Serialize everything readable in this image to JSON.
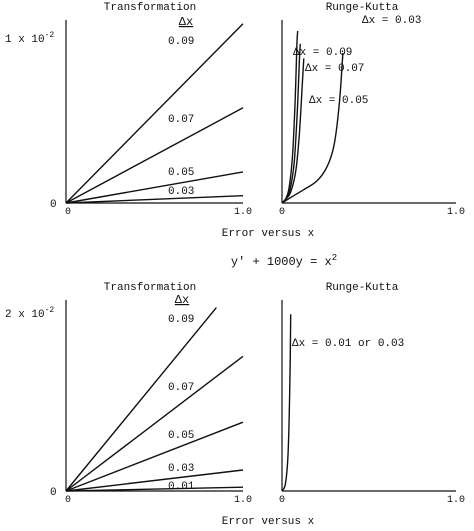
{
  "caption": {
    "xlabel_top": "Error versus x",
    "equation": "y′ + 1000y = x",
    "equation_sup": "2",
    "xlabel_bottom": "Error versus x"
  },
  "chart_data": [
    {
      "type": "line",
      "title": "Transformation",
      "legend_title": "Δx",
      "y_tick_main": "1 x 10",
      "y_tick_exp": "-2",
      "y_tick_zero": "0",
      "x_tick_zero": "0",
      "x_tick_end": "1.0",
      "xlim": [
        0,
        1.0
      ],
      "ylim": [
        0,
        0.01
      ],
      "series": [
        {
          "name": "0.09",
          "x": [
            0,
            1.0
          ],
          "y": [
            0,
            0.0098
          ]
        },
        {
          "name": "0.07",
          "x": [
            0,
            1.0
          ],
          "y": [
            0,
            0.0052
          ]
        },
        {
          "name": "0.05",
          "x": [
            0,
            1.0
          ],
          "y": [
            0,
            0.0017
          ]
        },
        {
          "name": "0.03",
          "x": [
            0,
            1.0
          ],
          "y": [
            0,
            0.0004
          ]
        }
      ]
    },
    {
      "type": "line",
      "title": "Runge-Kutta",
      "x_tick_zero": "0",
      "x_tick_end": "1.0",
      "xlim": [
        0,
        1.0
      ],
      "ylim": [
        0,
        0.01
      ],
      "series": [
        {
          "name": "Δx = 0.09",
          "x": [
            0,
            0.02,
            0.04,
            0.06,
            0.075,
            0.085,
            0.09
          ],
          "y": [
            0,
            0.0002,
            0.0008,
            0.0025,
            0.0055,
            0.0085,
            0.0094
          ]
        },
        {
          "name": "Δx = 0.07",
          "x": [
            0,
            0.02,
            0.045,
            0.07,
            0.088,
            0.1,
            0.105
          ],
          "y": [
            0,
            0.0002,
            0.0007,
            0.0022,
            0.005,
            0.0078,
            0.0087
          ]
        },
        {
          "name": "Δx = 0.05",
          "x": [
            0,
            0.02,
            0.05,
            0.08,
            0.1,
            0.115,
            0.125
          ],
          "y": [
            0,
            0.0002,
            0.0006,
            0.0018,
            0.0038,
            0.0062,
            0.0079
          ]
        },
        {
          "name": "Δx = 0.03",
          "x": [
            0,
            0.05,
            0.12,
            0.2,
            0.26,
            0.3,
            0.33,
            0.35
          ],
          "y": [
            0,
            0.0003,
            0.0007,
            0.0012,
            0.002,
            0.0032,
            0.0055,
            0.0082
          ]
        }
      ]
    },
    {
      "type": "line",
      "title": "Transformation",
      "legend_title": "Δx",
      "y_tick_main": "2 x 10",
      "y_tick_exp": "-2",
      "y_tick_zero": "0",
      "x_tick_zero": "0",
      "x_tick_end": "1.0",
      "xlim": [
        0,
        1.0
      ],
      "ylim": [
        0,
        0.02
      ],
      "series": [
        {
          "name": "0.09",
          "x": [
            0,
            0.85
          ],
          "y": [
            0,
            0.0192
          ]
        },
        {
          "name": "0.07",
          "x": [
            0,
            1.0
          ],
          "y": [
            0,
            0.0141
          ]
        },
        {
          "name": "0.05",
          "x": [
            0,
            1.0
          ],
          "y": [
            0,
            0.0072
          ]
        },
        {
          "name": "0.03",
          "x": [
            0,
            1.0
          ],
          "y": [
            0,
            0.0022
          ]
        },
        {
          "name": "0.01",
          "x": [
            0,
            1.0
          ],
          "y": [
            0,
            0.0004
          ]
        }
      ]
    },
    {
      "type": "line",
      "title": "Runge-Kutta",
      "x_tick_zero": "0",
      "x_tick_end": "1.0",
      "xlim": [
        0,
        1.0
      ],
      "ylim": [
        0,
        0.02
      ],
      "series": [
        {
          "name": "Δx = 0.01 or 0.03",
          "x": [
            0,
            0.02,
            0.035,
            0.045,
            0.05
          ],
          "y": [
            0,
            0.0008,
            0.004,
            0.011,
            0.0185
          ]
        }
      ]
    }
  ]
}
